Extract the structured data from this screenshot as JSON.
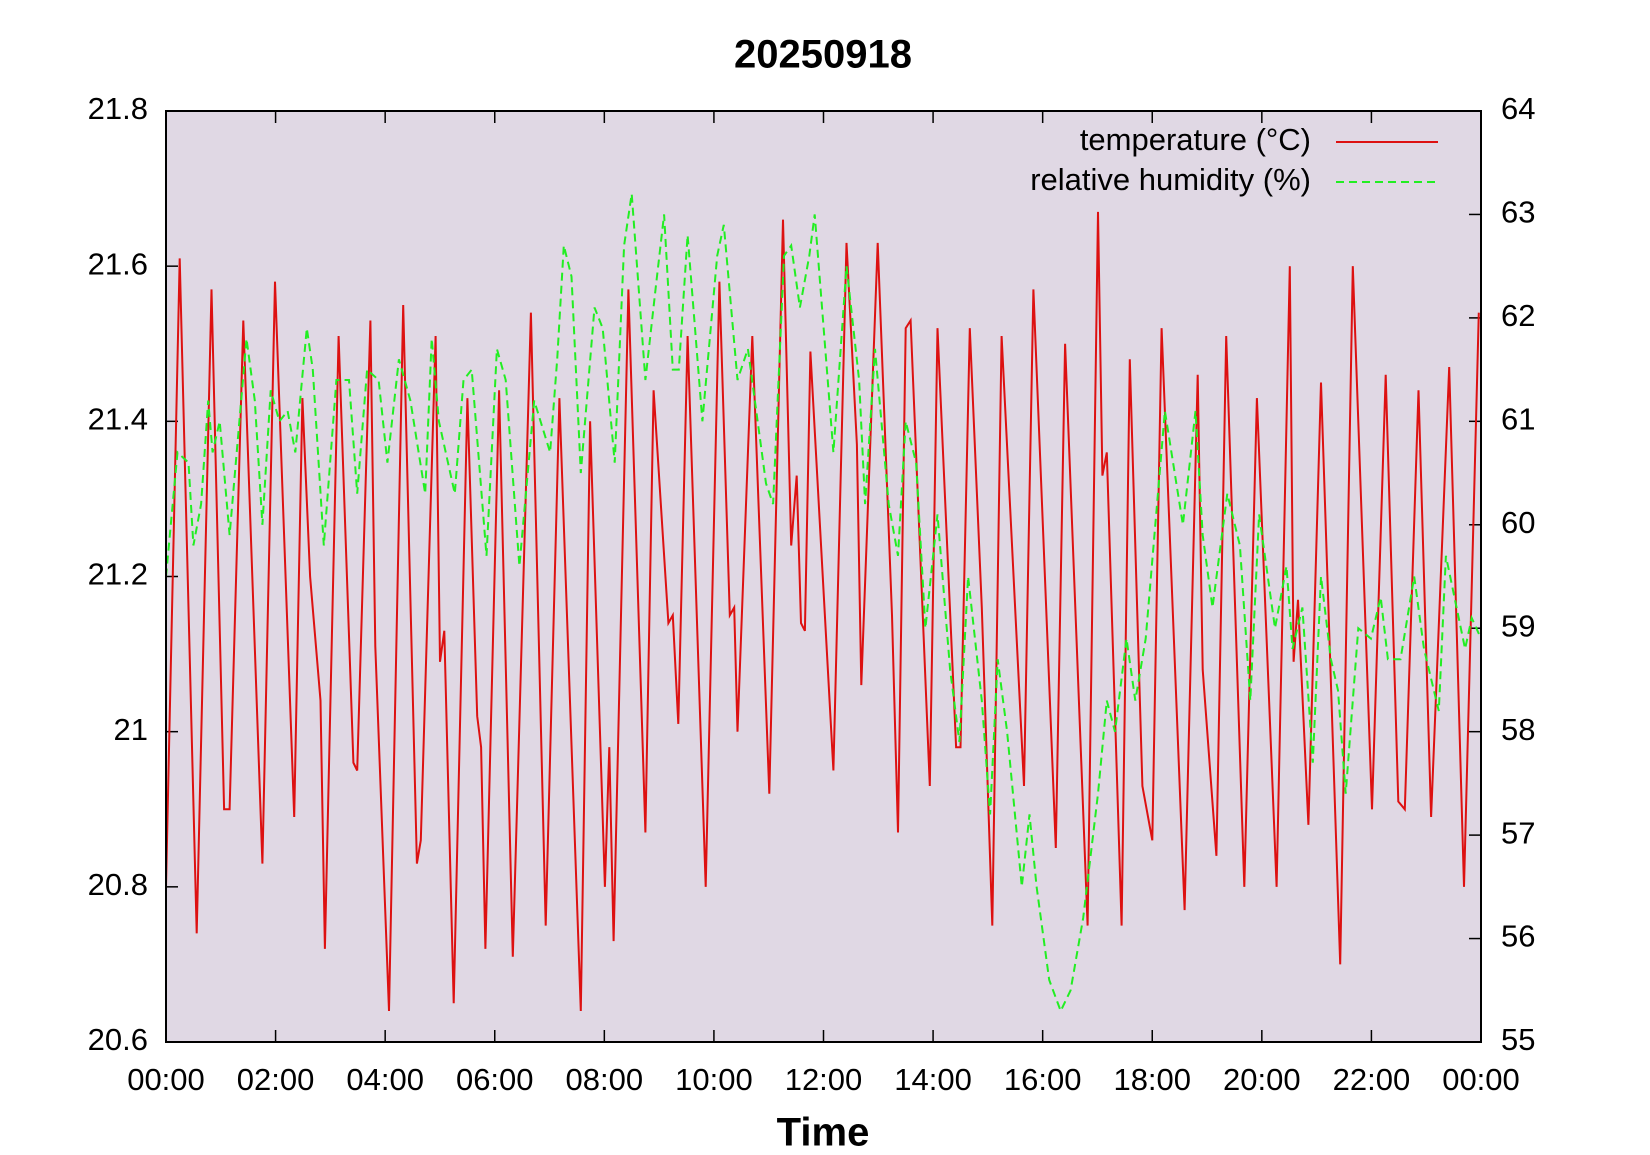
{
  "chart_data": {
    "type": "line",
    "title": "20250918",
    "xlabel": "Time",
    "xlim": [
      0,
      24
    ],
    "xticks": [
      {
        "value": 0,
        "label": "00:00"
      },
      {
        "value": 2,
        "label": "02:00"
      },
      {
        "value": 4,
        "label": "04:00"
      },
      {
        "value": 6,
        "label": "06:00"
      },
      {
        "value": 8,
        "label": "08:00"
      },
      {
        "value": 10,
        "label": "10:00"
      },
      {
        "value": 12,
        "label": "12:00"
      },
      {
        "value": 14,
        "label": "14:00"
      },
      {
        "value": 16,
        "label": "16:00"
      },
      {
        "value": 18,
        "label": "18:00"
      },
      {
        "value": 20,
        "label": "20:00"
      },
      {
        "value": 22,
        "label": "22:00"
      },
      {
        "value": 24,
        "label": "00:00"
      }
    ],
    "ylim": [
      20.6,
      21.8
    ],
    "yticks": [
      20.6,
      20.8,
      21,
      21.2,
      21.4,
      21.6,
      21.8
    ],
    "y2lim": [
      55,
      64
    ],
    "y2ticks": [
      55,
      56,
      57,
      58,
      59,
      60,
      61,
      62,
      63,
      64
    ],
    "legend": "top right",
    "background": "#e0d8e4",
    "series": [
      {
        "name": "temperature (°C)",
        "color": "#dd1111",
        "linestyle": "solid",
        "x": [
          0,
          0.25,
          0.56,
          0.83,
          1.06,
          1.16,
          1.41,
          1.76,
          1.99,
          2.34,
          2.49,
          2.63,
          2.82,
          2.9,
          3.15,
          3.42,
          3.49,
          3.73,
          3.82,
          4.07,
          4.33,
          4.58,
          4.65,
          4.92,
          5.0,
          5.08,
          5.25,
          5.5,
          5.68,
          5.75,
          5.83,
          6.08,
          6.33,
          6.66,
          6.93,
          7.18,
          7.57,
          7.74,
          8.01,
          8.09,
          8.17,
          8.44,
          8.75,
          8.9,
          9.17,
          9.25,
          9.35,
          9.52,
          9.85,
          10.1,
          10.29,
          10.37,
          10.43,
          10.7,
          11.01,
          11.26,
          11.41,
          11.51,
          11.59,
          11.66,
          11.76,
          12.18,
          12.42,
          12.61,
          12.69,
          12.99,
          13.25,
          13.36,
          13.5,
          13.59,
          13.94,
          14.08,
          14.42,
          14.5,
          14.67,
          14.89,
          15.08,
          15.25,
          15.66,
          15.83,
          16.24,
          16.41,
          16.82,
          17.01,
          17.09,
          17.17,
          17.44,
          17.59,
          17.82,
          18.0,
          18.17,
          18.59,
          18.83,
          18.92,
          19.17,
          19.35,
          19.68,
          19.91,
          20.27,
          20.51,
          20.58,
          20.66,
          20.85,
          21.08,
          21.43,
          21.66,
          22.01,
          22.26,
          22.49,
          22.61,
          22.86,
          23.09,
          23.42,
          23.69,
          23.96
        ],
        "values": [
          20.8,
          21.61,
          20.74,
          21.57,
          20.9,
          20.9,
          21.53,
          20.83,
          21.58,
          20.89,
          21.43,
          21.2,
          21.04,
          20.72,
          21.51,
          20.96,
          20.95,
          21.53,
          21.11,
          20.64,
          21.55,
          20.83,
          20.86,
          21.51,
          21.09,
          21.13,
          20.65,
          21.43,
          21.02,
          20.98,
          20.72,
          21.44,
          20.71,
          21.54,
          20.75,
          21.43,
          20.64,
          21.4,
          20.8,
          20.98,
          20.73,
          21.57,
          20.87,
          21.44,
          21.14,
          21.15,
          21.01,
          21.51,
          20.8,
          21.58,
          21.15,
          21.16,
          21.0,
          21.51,
          20.92,
          21.66,
          21.24,
          21.33,
          21.14,
          21.13,
          21.49,
          20.95,
          21.63,
          21.37,
          21.06,
          21.63,
          21.15,
          20.87,
          21.52,
          21.53,
          20.93,
          21.52,
          20.98,
          20.98,
          21.52,
          21.16,
          20.75,
          21.51,
          20.93,
          21.57,
          20.85,
          21.5,
          20.75,
          21.67,
          21.33,
          21.36,
          20.75,
          21.48,
          20.93,
          20.86,
          21.52,
          20.77,
          21.46,
          21.08,
          20.84,
          21.51,
          20.8,
          21.43,
          20.8,
          21.6,
          21.09,
          21.17,
          20.88,
          21.45,
          20.7,
          21.6,
          20.9,
          21.46,
          20.91,
          20.9,
          21.44,
          20.89,
          21.47,
          20.8,
          21.54
        ]
      },
      {
        "name": "relative humidity (%)",
        "color": "#22ee22",
        "linestyle": "dashed",
        "axis": "y2",
        "x": [
          0,
          0.21,
          0.41,
          0.5,
          0.64,
          0.77,
          0.85,
          0.98,
          1.16,
          1.29,
          1.47,
          1.62,
          1.76,
          1.91,
          2.07,
          2.22,
          2.36,
          2.57,
          2.68,
          2.88,
          3.11,
          3.34,
          3.49,
          3.67,
          3.88,
          4.04,
          4.25,
          4.46,
          4.73,
          4.85,
          4.98,
          5.27,
          5.43,
          5.58,
          5.85,
          6.04,
          6.2,
          6.45,
          6.72,
          7.01,
          7.14,
          7.26,
          7.4,
          7.57,
          7.82,
          7.97,
          8.19,
          8.36,
          8.5,
          8.61,
          8.75,
          8.94,
          9.09,
          9.25,
          9.36,
          9.52,
          9.79,
          10.06,
          10.18,
          10.43,
          10.62,
          10.95,
          11.08,
          11.28,
          11.41,
          11.57,
          11.74,
          11.84,
          12.18,
          12.42,
          12.65,
          12.76,
          12.94,
          13.19,
          13.36,
          13.5,
          13.69,
          13.86,
          14.08,
          14.31,
          14.48,
          14.64,
          14.89,
          15.04,
          15.18,
          15.35,
          15.62,
          15.76,
          15.89,
          16.12,
          16.33,
          16.51,
          16.74,
          17.01,
          17.17,
          17.32,
          17.53,
          17.69,
          17.88,
          18.23,
          18.56,
          18.79,
          18.92,
          19.1,
          19.37,
          19.6,
          19.79,
          19.95,
          20.24,
          20.45,
          20.56,
          20.74,
          20.93,
          21.08,
          21.26,
          21.39,
          21.53,
          21.76,
          21.99,
          22.17,
          22.3,
          22.53,
          22.78,
          22.96,
          23.23,
          23.36,
          23.71,
          23.83,
          24.0
        ],
        "values": [
          59.5,
          60.7,
          60.6,
          59.8,
          60.2,
          61.2,
          60.7,
          61.0,
          59.9,
          60.7,
          61.8,
          61.2,
          60.0,
          61.3,
          61.0,
          61.1,
          60.7,
          61.9,
          61.5,
          59.8,
          61.4,
          61.4,
          60.3,
          61.5,
          61.4,
          60.6,
          61.6,
          61.2,
          60.3,
          61.8,
          61.0,
          60.3,
          61.4,
          61.5,
          59.7,
          61.7,
          61.4,
          59.6,
          61.2,
          60.7,
          61.6,
          62.7,
          62.4,
          60.5,
          62.1,
          61.9,
          60.6,
          62.7,
          63.2,
          62.4,
          61.4,
          62.3,
          63.0,
          61.5,
          61.5,
          62.8,
          61.0,
          62.6,
          62.9,
          61.4,
          61.7,
          60.4,
          60.2,
          62.6,
          62.7,
          62.1,
          62.6,
          63.0,
          60.7,
          62.5,
          61.4,
          60.2,
          61.7,
          60.2,
          59.7,
          61.0,
          60.6,
          59.0,
          60.1,
          58.6,
          57.9,
          59.5,
          58.3,
          57.2,
          58.7,
          58.0,
          56.5,
          57.2,
          56.5,
          55.6,
          55.3,
          55.5,
          56.2,
          57.4,
          58.3,
          58.0,
          58.9,
          58.3,
          58.9,
          61.1,
          60.0,
          61.1,
          59.9,
          59.2,
          60.3,
          59.8,
          58.3,
          60.1,
          59.0,
          59.6,
          58.8,
          59.2,
          57.7,
          59.5,
          58.7,
          58.4,
          57.4,
          59.0,
          58.9,
          59.3,
          58.7,
          58.7,
          59.5,
          58.8,
          58.2,
          59.7,
          58.8,
          59.1,
          58.9
        ]
      }
    ]
  }
}
